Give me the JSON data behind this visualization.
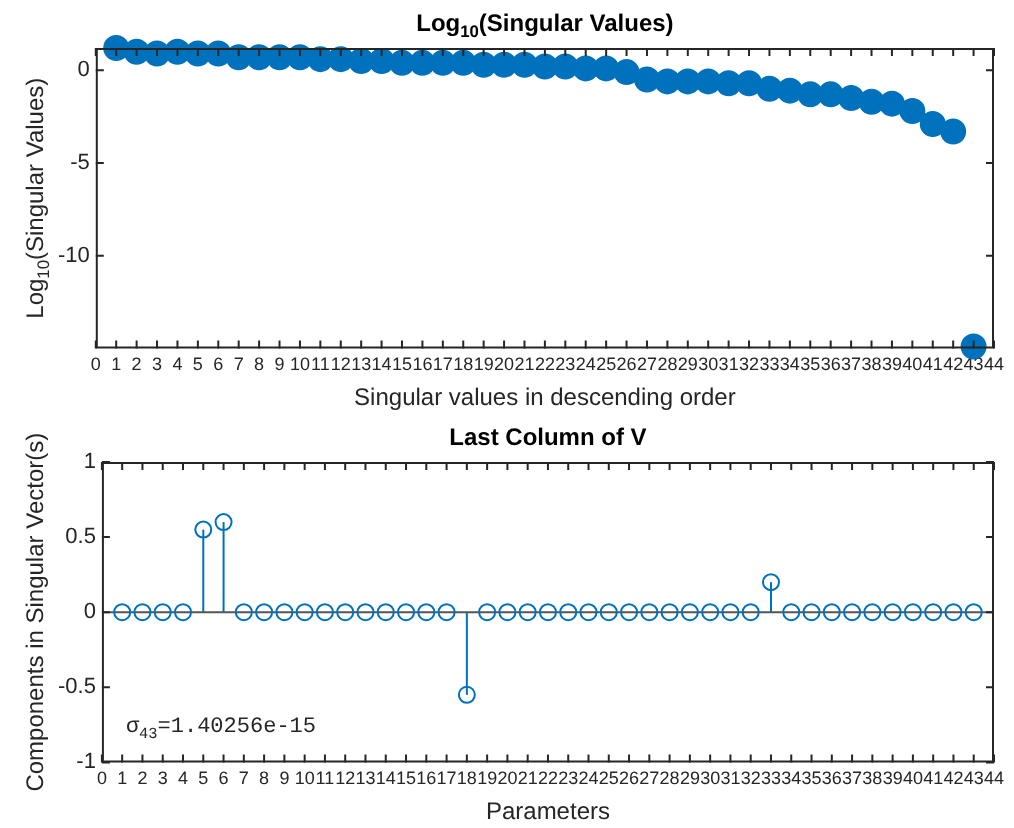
{
  "chart_data": [
    {
      "type": "scatter",
      "title": "Log$_{10}$(Singular Values)",
      "xlabel": "Singular values in descending order",
      "ylabel": "Log$_{10}$(Singular Values)",
      "x": [
        1,
        2,
        3,
        4,
        5,
        6,
        7,
        8,
        9,
        10,
        11,
        12,
        13,
        14,
        15,
        16,
        17,
        18,
        19,
        20,
        21,
        22,
        23,
        24,
        25,
        26,
        27,
        28,
        29,
        30,
        31,
        32,
        33,
        34,
        35,
        36,
        37,
        38,
        39,
        40,
        41,
        42,
        43
      ],
      "values": [
        1.2,
        1.0,
        0.9,
        1.0,
        0.9,
        0.9,
        0.7,
        0.7,
        0.7,
        0.7,
        0.6,
        0.6,
        0.5,
        0.5,
        0.4,
        0.4,
        0.4,
        0.4,
        0.3,
        0.3,
        0.3,
        0.2,
        0.2,
        0.1,
        0.1,
        -0.1,
        -0.5,
        -0.6,
        -0.6,
        -0.6,
        -0.7,
        -0.7,
        -1.0,
        -1.1,
        -1.3,
        -1.3,
        -1.5,
        -1.7,
        -1.8,
        -2.2,
        -2.9,
        -3.3,
        -14.9
      ],
      "color": "#0072bd",
      "marker": "circle",
      "grid": false,
      "xlim": [
        0,
        44
      ],
      "xticks": [
        0,
        1,
        2,
        3,
        4,
        5,
        6,
        7,
        8,
        9,
        10,
        11,
        12,
        13,
        14,
        15,
        16,
        17,
        18,
        19,
        20,
        21,
        22,
        23,
        24,
        25,
        26,
        27,
        28,
        29,
        30,
        31,
        32,
        33,
        34,
        35,
        36,
        37,
        38,
        39,
        40,
        41,
        42,
        43,
        44
      ],
      "ylim": [
        -15,
        1.2
      ],
      "yticks": [
        -10,
        -5,
        0
      ]
    },
    {
      "type": "lollipop",
      "title": "Last Column of V",
      "xlabel": "Parameters",
      "ylabel": "Components in Singular Vector(s)",
      "x": [
        1,
        2,
        3,
        4,
        5,
        6,
        7,
        8,
        9,
        10,
        11,
        12,
        13,
        14,
        15,
        16,
        17,
        18,
        19,
        20,
        21,
        22,
        23,
        24,
        25,
        26,
        27,
        28,
        29,
        30,
        31,
        32,
        33,
        34,
        35,
        36,
        37,
        38,
        39,
        40,
        41,
        42,
        43
      ],
      "values": [
        0,
        0,
        0,
        0,
        0.55,
        0.6,
        0,
        0,
        0,
        0,
        0,
        0,
        0,
        0,
        0,
        0,
        0,
        -0.55,
        0,
        0,
        0,
        0,
        0,
        0,
        0,
        0,
        0,
        0,
        0,
        0,
        0,
        0,
        0.2,
        0,
        0,
        0,
        0,
        0,
        0,
        0,
        0,
        0,
        0
      ],
      "color": "#0072bd",
      "marker": "circle",
      "grid": false,
      "xlim": [
        0,
        44
      ],
      "xticks": [
        0,
        1,
        2,
        3,
        4,
        5,
        6,
        7,
        8,
        9,
        10,
        11,
        12,
        13,
        14,
        15,
        16,
        17,
        18,
        19,
        20,
        21,
        22,
        23,
        24,
        25,
        26,
        27,
        28,
        29,
        30,
        31,
        32,
        33,
        34,
        35,
        36,
        37,
        38,
        39,
        40,
        41,
        42,
        43,
        44
      ],
      "ylim": [
        -1,
        1
      ],
      "yticks": [
        -1,
        -0.5,
        0,
        0.5,
        1
      ],
      "ref_lines": [
        {
          "axis": "y",
          "value": 0,
          "color": "#555555"
        }
      ],
      "annotations": [
        "σ$_{43}$=1.40256e-15"
      ]
    }
  ]
}
